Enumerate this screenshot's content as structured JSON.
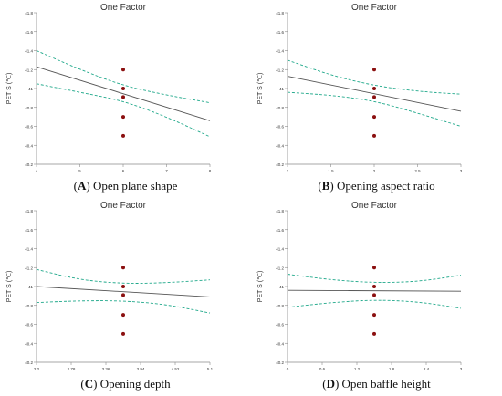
{
  "chart_data": [
    {
      "type": "scatter",
      "title": "One Factor",
      "ylabel": "PET S (℃)",
      "xlabel": "",
      "ylim": [
        40.2,
        41.8
      ],
      "yticks": [
        40.2,
        40.4,
        40.6,
        40.8,
        41,
        41.2,
        41.4,
        41.6,
        41.8
      ],
      "ytick_labels": [
        "40.2",
        "40.4",
        "40.6",
        "40.8",
        "41",
        "41.2",
        "41.4",
        "41.6",
        "41.8"
      ],
      "xlim": [
        4,
        8
      ],
      "xticks": [
        4,
        5,
        6,
        7,
        8
      ],
      "xtick_labels": [
        "4",
        "5",
        "6",
        "7",
        "8"
      ],
      "points": [
        {
          "x": 6,
          "y": 41.2
        },
        {
          "x": 6,
          "y": 41.0
        },
        {
          "x": 6,
          "y": 40.91
        },
        {
          "x": 6,
          "y": 40.7
        },
        {
          "x": 6,
          "y": 40.5
        }
      ],
      "fit_line": {
        "x": [
          4,
          8
        ],
        "y": [
          41.23,
          40.66
        ]
      },
      "ci_upper": {
        "x": [
          4,
          5,
          6,
          7,
          8
        ],
        "y": [
          41.4,
          41.2,
          41.03,
          40.93,
          40.85
        ]
      },
      "ci_lower": {
        "x": [
          4,
          5,
          6,
          7,
          8
        ],
        "y": [
          41.05,
          40.96,
          40.87,
          40.7,
          40.49
        ]
      },
      "caption_letter": "A",
      "caption_text": "Open plane shape"
    },
    {
      "type": "scatter",
      "title": "One Factor",
      "ylabel": "PET S (℃)",
      "xlabel": "",
      "ylim": [
        40.2,
        41.8
      ],
      "yticks": [
        40.2,
        40.4,
        40.6,
        40.8,
        41,
        41.2,
        41.4,
        41.6,
        41.8
      ],
      "ytick_labels": [
        "40.2",
        "40.4",
        "40.6",
        "40.8",
        "41",
        "41.2",
        "41.4",
        "41.6",
        "41.8"
      ],
      "xlim": [
        1,
        3
      ],
      "xticks": [
        1,
        1.5,
        2,
        2.5,
        3
      ],
      "xtick_labels": [
        "1",
        "1.5",
        "2",
        "2.5",
        "3"
      ],
      "points": [
        {
          "x": 2,
          "y": 41.2
        },
        {
          "x": 2,
          "y": 41.0
        },
        {
          "x": 2,
          "y": 40.91
        },
        {
          "x": 2,
          "y": 40.7
        },
        {
          "x": 2,
          "y": 40.5
        }
      ],
      "fit_line": {
        "x": [
          1,
          3
        ],
        "y": [
          41.13,
          40.76
        ]
      },
      "ci_upper": {
        "x": [
          1,
          1.5,
          2,
          2.5,
          3
        ],
        "y": [
          41.3,
          41.14,
          41.03,
          40.97,
          40.94
        ]
      },
      "ci_lower": {
        "x": [
          1,
          1.5,
          2,
          2.5,
          3
        ],
        "y": [
          40.96,
          40.93,
          40.87,
          40.74,
          40.6
        ]
      },
      "caption_letter": "B",
      "caption_text": "Opening aspect ratio"
    },
    {
      "type": "scatter",
      "title": "One Factor",
      "ylabel": "PET S (℃)",
      "xlabel": "",
      "ylim": [
        40.2,
        41.8
      ],
      "yticks": [
        40.2,
        40.4,
        40.6,
        40.8,
        41,
        41.2,
        41.4,
        41.6,
        41.8
      ],
      "ytick_labels": [
        "40.2",
        "40.4",
        "40.6",
        "40.8",
        "41",
        "41.2",
        "41.4",
        "41.6",
        "41.8"
      ],
      "xlim": [
        2.2,
        5.1
      ],
      "xticks": [
        2.2,
        2.78,
        3.36,
        3.94,
        4.52,
        5.1
      ],
      "xtick_labels": [
        "2.2",
        "2.78",
        "3.36",
        "3.94",
        "4.52",
        "5.1"
      ],
      "points": [
        {
          "x": 3.65,
          "y": 41.2
        },
        {
          "x": 3.65,
          "y": 41.0
        },
        {
          "x": 3.65,
          "y": 40.91
        },
        {
          "x": 3.65,
          "y": 40.7
        },
        {
          "x": 3.65,
          "y": 40.5
        }
      ],
      "fit_line": {
        "x": [
          2.2,
          5.1
        ],
        "y": [
          41.0,
          40.89
        ]
      },
      "ci_upper": {
        "x": [
          2.2,
          2.925,
          3.65,
          4.375,
          5.1
        ],
        "y": [
          41.18,
          41.07,
          41.03,
          41.04,
          41.07
        ]
      },
      "ci_lower": {
        "x": [
          2.2,
          2.925,
          3.65,
          4.375,
          5.1
        ],
        "y": [
          40.83,
          40.85,
          40.85,
          40.81,
          40.72
        ]
      },
      "caption_letter": "C",
      "caption_text": "Opening depth"
    },
    {
      "type": "scatter",
      "title": "One Factor",
      "ylabel": "PET S (℃)",
      "xlabel": "",
      "ylim": [
        40.2,
        41.8
      ],
      "yticks": [
        40.2,
        40.4,
        40.6,
        40.8,
        41,
        41.2,
        41.4,
        41.6,
        41.8
      ],
      "ytick_labels": [
        "40.2",
        "40.4",
        "40.6",
        "40.8",
        "41",
        "41.2",
        "41.4",
        "41.6",
        "41.8"
      ],
      "xlim": [
        0,
        3
      ],
      "xticks": [
        0,
        0.6,
        1.2,
        1.8,
        2.4,
        3
      ],
      "xtick_labels": [
        "0",
        "0.6",
        "1.2",
        "1.8",
        "2.4",
        "3"
      ],
      "points": [
        {
          "x": 1.5,
          "y": 41.2
        },
        {
          "x": 1.5,
          "y": 41.0
        },
        {
          "x": 1.5,
          "y": 40.91
        },
        {
          "x": 1.5,
          "y": 40.7
        },
        {
          "x": 1.5,
          "y": 40.5
        }
      ],
      "fit_line": {
        "x": [
          0,
          3
        ],
        "y": [
          40.96,
          40.95
        ]
      },
      "ci_upper": {
        "x": [
          0,
          0.75,
          1.5,
          2.25,
          3
        ],
        "y": [
          41.13,
          41.07,
          41.04,
          41.05,
          41.12
        ]
      },
      "ci_lower": {
        "x": [
          0,
          0.75,
          1.5,
          2.25,
          3
        ],
        "y": [
          40.78,
          40.83,
          40.86,
          40.84,
          40.77
        ]
      },
      "caption_letter": "D",
      "caption_text": "Open baffle height"
    }
  ],
  "colors": {
    "fit_line": "#555555",
    "ci_band": "#1fa88a",
    "points": "#8b1010",
    "axis": "#8a8a8a",
    "text": "#333333"
  }
}
